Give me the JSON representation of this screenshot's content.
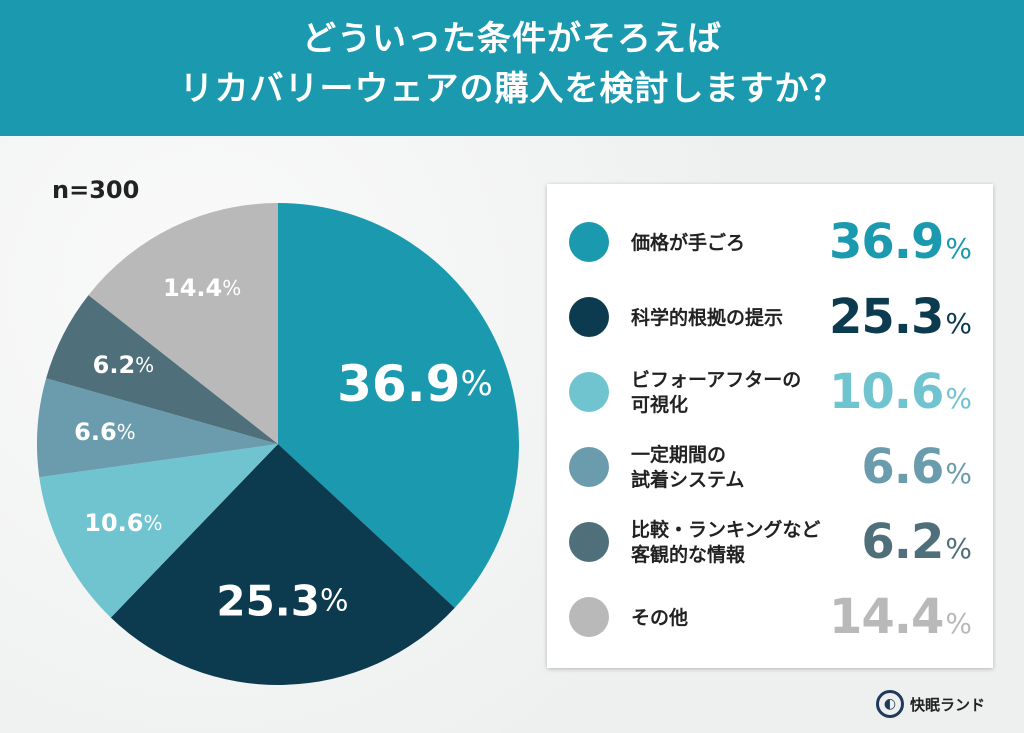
{
  "header": {
    "line1": "どういった条件がそろえば",
    "line2": "リカバリーウェアの購入を検討しますか？"
  },
  "sample": "n=300",
  "logo": {
    "text": "快眠ランド"
  },
  "chart_data": {
    "type": "pie",
    "start": "top",
    "direction": "clockwise",
    "unit": "%",
    "slices": [
      {
        "label": "価格が手ごろ",
        "value": 36.9,
        "display": "36.9",
        "color": "#1b9aaf",
        "label_color": "#ffffff"
      },
      {
        "label": "科学的根拠の提示",
        "value": 25.3,
        "display": "25.3",
        "color": "#0c3a4e",
        "label_color": "#ffffff"
      },
      {
        "label": "ビフォーアフターの\n可視化",
        "value": 10.6,
        "display": "10.6",
        "color": "#70c4d0",
        "label_color": "#ffffff"
      },
      {
        "label": "一定期間の\n試着システム",
        "value": 6.6,
        "display": "6.6",
        "color": "#6b9cad",
        "label_color": "#ffffff"
      },
      {
        "label": "比較・ランキングなど\n客観的な情報",
        "value": 6.2,
        "display": "6.2",
        "color": "#4f6f7a",
        "label_color": "#ffffff"
      },
      {
        "label": "その他",
        "value": 14.4,
        "display": "14.4",
        "color": "#b9b9b9",
        "label_color": "#ffffff"
      }
    ]
  }
}
